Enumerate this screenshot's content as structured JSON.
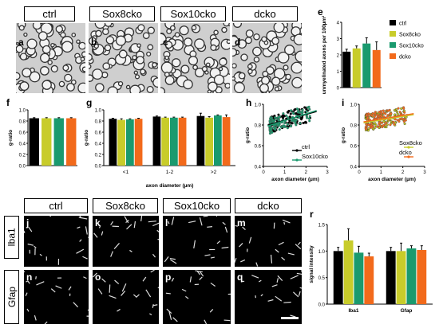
{
  "genotypes": [
    "ctrl",
    "Sox8cko",
    "Sox10cko",
    "dcko"
  ],
  "colors": {
    "ctrl": "#000000",
    "Sox8cko": "#c8cc2a",
    "Sox10cko": "#1a9a6e",
    "dcko": "#f26a1b"
  },
  "panel_letters": {
    "a": "a",
    "b": "b",
    "c": "c",
    "d": "d",
    "e": "e",
    "f": "f",
    "g": "g",
    "h": "h",
    "i": "i",
    "j": "j",
    "k": "k",
    "l": "l",
    "m": "m",
    "n": "n",
    "o": "o",
    "p": "p",
    "q": "q",
    "r": "r"
  },
  "stains": [
    "Iba1",
    "Gfap"
  ],
  "chart_data": [
    {
      "id": "e",
      "type": "bar",
      "categories": [
        "ctrl",
        "Sox8cko",
        "Sox10cko",
        "dcko"
      ],
      "values": [
        2.2,
        2.4,
        2.7,
        2.3
      ],
      "errors": [
        0.15,
        0.15,
        0.35,
        0.5
      ],
      "ylabel": "unmyelinated axons per 100µm²",
      "ylim": [
        0,
        4
      ],
      "yticks": [
        "0",
        "1",
        "2",
        "3",
        "4"
      ],
      "legend": [
        "ctrl",
        "Sox8cko",
        "Sox10cko",
        "dcko"
      ]
    },
    {
      "id": "f",
      "type": "bar",
      "categories": [
        "ctrl",
        "Sox8cko",
        "Sox10cko",
        "dcko"
      ],
      "values": [
        0.85,
        0.85,
        0.85,
        0.85
      ],
      "errors": [
        0.01,
        0.01,
        0.01,
        0.01
      ],
      "ylabel": "g-ratio",
      "ylim": [
        0,
        1
      ],
      "yticks": [
        "0.0",
        "0.2",
        "0.4",
        "0.6",
        "0.8",
        "1.0"
      ]
    },
    {
      "id": "g",
      "type": "bar",
      "categories": [
        "<1",
        "1-2",
        ">2"
      ],
      "series": [
        {
          "name": "ctrl",
          "values": [
            0.84,
            0.88,
            0.89
          ],
          "errors": [
            0.01,
            0.01,
            0.05
          ]
        },
        {
          "name": "Sox8cko",
          "values": [
            0.82,
            0.86,
            0.86
          ],
          "errors": [
            0.02,
            0.01,
            0.02
          ]
        },
        {
          "name": "Sox10cko",
          "values": [
            0.83,
            0.86,
            0.9
          ],
          "errors": [
            0.01,
            0.01,
            0.01
          ]
        },
        {
          "name": "dcko",
          "values": [
            0.84,
            0.86,
            0.87
          ],
          "errors": [
            0.01,
            0.01,
            0.04
          ]
        }
      ],
      "xlabel": "axon diameter (µm)",
      "ylabel": "g-ratio",
      "ylim": [
        0,
        1
      ],
      "yticks": [
        "0.0",
        "0.2",
        "0.4",
        "0.6",
        "0.8",
        "1.0"
      ]
    },
    {
      "id": "h",
      "type": "scatter",
      "xlabel": "axon diameter (µm)",
      "ylabel": "g-ratio",
      "xlim": [
        0,
        3
      ],
      "ylim": [
        0.4,
        1.0
      ],
      "xticks": [
        "0",
        "1",
        "2",
        "3"
      ],
      "yticks": [
        "0.4",
        "0.6",
        "0.8",
        "1.0"
      ],
      "series": [
        {
          "name": "ctrl",
          "color": "#000000",
          "fit": [
            [
              0.2,
              0.8
            ],
            [
              2.5,
              0.93
            ]
          ]
        },
        {
          "name": "Sox10cko",
          "color": "#1a9a6e",
          "fit": [
            [
              0.2,
              0.79
            ],
            [
              2.5,
              0.94
            ]
          ]
        }
      ]
    },
    {
      "id": "i",
      "type": "scatter",
      "xlabel": "axon diameter (µm)",
      "ylabel": "g-ratio",
      "xlim": [
        0,
        3
      ],
      "ylim": [
        0.4,
        1.0
      ],
      "xticks": [
        "0",
        "1",
        "2",
        "3"
      ],
      "yticks": [
        "0.4",
        "0.6",
        "0.8",
        "1.0"
      ],
      "series": [
        {
          "name": "Sox8cko",
          "color": "#c8cc2a",
          "fit": [
            [
              0.2,
              0.82
            ],
            [
              2.5,
              0.9
            ]
          ]
        },
        {
          "name": "dcko",
          "color": "#f26a1b",
          "fit": [
            [
              0.2,
              0.83
            ],
            [
              2.5,
              0.91
            ]
          ]
        }
      ]
    },
    {
      "id": "r",
      "type": "bar",
      "categories": [
        "Iba1",
        "Gfap"
      ],
      "series": [
        {
          "name": "ctrl",
          "values": [
            1.0,
            1.0
          ],
          "errors": [
            0.07,
            0.07
          ]
        },
        {
          "name": "Sox8cko",
          "values": [
            1.2,
            1.0
          ],
          "errors": [
            0.22,
            0.15
          ]
        },
        {
          "name": "Sox10cko",
          "values": [
            0.97,
            1.05
          ],
          "errors": [
            0.12,
            0.05
          ]
        },
        {
          "name": "dcko",
          "values": [
            0.9,
            1.02
          ],
          "errors": [
            0.06,
            0.08
          ]
        }
      ],
      "ylabel": "signal intensity",
      "ylim": [
        0,
        1.5
      ],
      "yticks": [
        "0.0",
        "0.5",
        "1.0",
        "1.5"
      ]
    }
  ]
}
